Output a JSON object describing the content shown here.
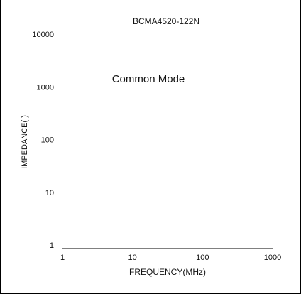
{
  "chart_data": {
    "type": "line",
    "title": "BCMA4520-122N",
    "annotation": "Common Mode",
    "xlabel": "FREQUENCY(MHz)",
    "ylabel": "IMPEDANCE(  )",
    "x_scale": "log",
    "y_scale": "log",
    "xlim": [
      1,
      1000
    ],
    "ylim": [
      1,
      10000
    ],
    "x_ticks": [
      "1",
      "10",
      "100",
      "1000"
    ],
    "y_ticks": [
      "10000",
      "1000",
      "100",
      "10",
      "1"
    ],
    "grid": false,
    "series": []
  }
}
